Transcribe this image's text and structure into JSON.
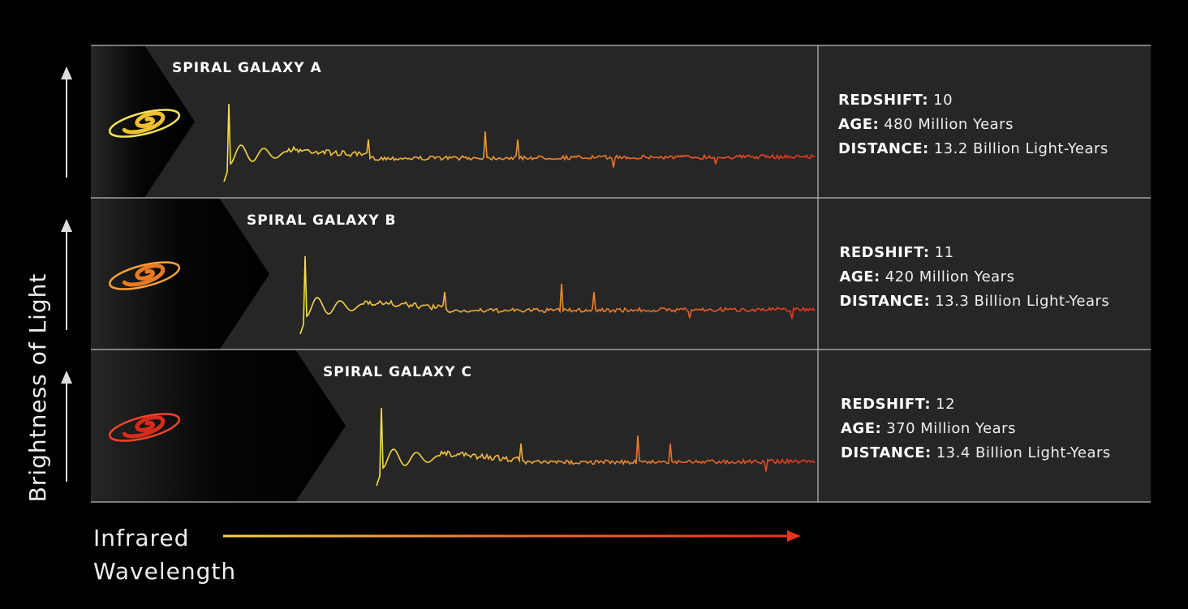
{
  "y_axis_label": "Brightness of Light",
  "x_axis_label": [
    "Infrared",
    "Wavelength"
  ],
  "rows": [
    {
      "title": "SPIRAL GALAXY A",
      "redshift": {
        "label": "REDSHIFT:",
        "value": "10"
      },
      "age": {
        "label": "AGE:",
        "value": "480 Million Years"
      },
      "distance": {
        "label": "DISTANCE:",
        "value": "13.2 Billion Light-Years"
      }
    },
    {
      "title": "SPIRAL GALAXY B",
      "redshift": {
        "label": "REDSHIFT:",
        "value": "11"
      },
      "age": {
        "label": "AGE:",
        "value": "420 Million Years"
      },
      "distance": {
        "label": "DISTANCE:",
        "value": "13.3 Billion Light-Years"
      }
    },
    {
      "title": "SPIRAL GALAXY C",
      "redshift": {
        "label": "REDSHIFT:",
        "value": "12"
      },
      "age": {
        "label": "AGE:",
        "value": "370 Million Years"
      },
      "distance": {
        "label": "DISTANCE:",
        "value": "13.4 Billion Light-Years"
      }
    }
  ]
}
